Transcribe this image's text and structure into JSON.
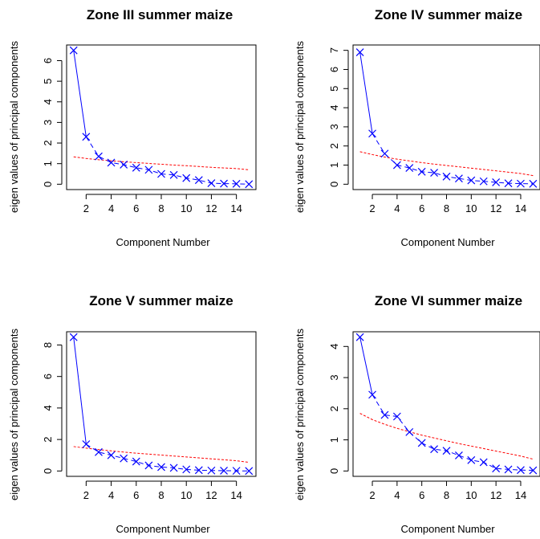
{
  "chart_data": [
    {
      "type": "line",
      "title": "Zone III summer maize",
      "xlabel": "Component Number",
      "ylabel": "eigen values of principal components",
      "xlim": [
        1,
        15
      ],
      "ylim": [
        0,
        6.5
      ],
      "xticks": [
        2,
        4,
        6,
        8,
        10,
        12,
        14
      ],
      "yticks": [
        0,
        1,
        2,
        3,
        4,
        5,
        6
      ],
      "grid": false,
      "series": [
        {
          "kind": "scatter-x",
          "color": "#0000ff",
          "x": [
            1,
            2,
            3,
            4,
            5,
            6,
            7,
            8,
            9,
            10,
            11,
            12,
            13,
            14,
            15
          ],
          "y": [
            6.5,
            2.3,
            1.35,
            1.05,
            0.95,
            0.8,
            0.7,
            0.5,
            0.45,
            0.3,
            0.2,
            0.05,
            0.03,
            0.02,
            0.0
          ]
        },
        {
          "kind": "dashed-line",
          "color": "#ff0000",
          "x": [
            1,
            2,
            3,
            4,
            5,
            6,
            7,
            8,
            9,
            10,
            11,
            12,
            13,
            14,
            15
          ],
          "y": [
            1.33,
            1.25,
            1.19,
            1.14,
            1.09,
            1.05,
            1.01,
            0.97,
            0.93,
            0.9,
            0.86,
            0.82,
            0.79,
            0.76,
            0.7
          ]
        }
      ]
    },
    {
      "type": "line",
      "title": "Zone IV summer maize",
      "xlabel": "Component Number",
      "ylabel": "eigen values of principal components",
      "xlim": [
        1,
        15
      ],
      "ylim": [
        0,
        7
      ],
      "xticks": [
        2,
        4,
        6,
        8,
        10,
        12,
        14
      ],
      "yticks": [
        0,
        1,
        2,
        3,
        4,
        5,
        6,
        7
      ],
      "grid": false,
      "series": [
        {
          "kind": "scatter-x",
          "color": "#0000ff",
          "x": [
            1,
            2,
            3,
            4,
            5,
            6,
            7,
            8,
            9,
            10,
            11,
            12,
            13,
            14,
            15
          ],
          "y": [
            6.9,
            2.65,
            1.6,
            1.0,
            0.85,
            0.65,
            0.6,
            0.4,
            0.3,
            0.2,
            0.15,
            0.1,
            0.05,
            0.03,
            0.02
          ]
        },
        {
          "kind": "dashed-line",
          "color": "#ff0000",
          "x": [
            1,
            2,
            3,
            4,
            5,
            6,
            7,
            8,
            9,
            10,
            11,
            12,
            13,
            14,
            15
          ],
          "y": [
            1.7,
            1.55,
            1.42,
            1.31,
            1.22,
            1.13,
            1.05,
            0.98,
            0.91,
            0.84,
            0.77,
            0.7,
            0.63,
            0.56,
            0.45
          ]
        }
      ]
    },
    {
      "type": "line",
      "title": "Zone V summer maize",
      "xlabel": "Component Number",
      "ylabel": "eigen values of principal components",
      "xlim": [
        1,
        15
      ],
      "ylim": [
        0,
        8.5
      ],
      "xticks": [
        2,
        4,
        6,
        8,
        10,
        12,
        14
      ],
      "yticks": [
        0,
        2,
        4,
        6,
        8
      ],
      "grid": false,
      "series": [
        {
          "kind": "scatter-x",
          "color": "#0000ff",
          "x": [
            1,
            2,
            3,
            4,
            5,
            6,
            7,
            8,
            9,
            10,
            11,
            12,
            13,
            14,
            15
          ],
          "y": [
            8.5,
            1.7,
            1.2,
            1.0,
            0.8,
            0.6,
            0.35,
            0.25,
            0.2,
            0.1,
            0.05,
            0.03,
            0.02,
            0.01,
            0.0
          ]
        },
        {
          "kind": "dashed-line",
          "color": "#ff0000",
          "x": [
            1,
            2,
            3,
            4,
            5,
            6,
            7,
            8,
            9,
            10,
            11,
            12,
            13,
            14,
            15
          ],
          "y": [
            1.55,
            1.45,
            1.36,
            1.28,
            1.2,
            1.13,
            1.07,
            1.01,
            0.95,
            0.89,
            0.83,
            0.77,
            0.71,
            0.65,
            0.55
          ]
        }
      ]
    },
    {
      "type": "line",
      "title": "Zone VI summer maize",
      "xlabel": "Component Number",
      "ylabel": "eigen values of principal components",
      "xlim": [
        1,
        15
      ],
      "ylim": [
        0,
        4.3
      ],
      "xticks": [
        2,
        4,
        6,
        8,
        10,
        12,
        14
      ],
      "yticks": [
        0,
        1,
        2,
        3,
        4
      ],
      "grid": false,
      "series": [
        {
          "kind": "scatter-x",
          "color": "#0000ff",
          "x": [
            1,
            2,
            3,
            4,
            5,
            6,
            7,
            8,
            9,
            10,
            11,
            12,
            13,
            14,
            15
          ],
          "y": [
            4.3,
            2.45,
            1.8,
            1.75,
            1.25,
            0.9,
            0.7,
            0.65,
            0.5,
            0.35,
            0.28,
            0.08,
            0.05,
            0.03,
            0.02
          ]
        },
        {
          "kind": "dashed-line",
          "color": "#ff0000",
          "x": [
            1,
            2,
            3,
            4,
            5,
            6,
            7,
            8,
            9,
            10,
            11,
            12,
            13,
            14,
            15
          ],
          "y": [
            1.85,
            1.65,
            1.5,
            1.37,
            1.26,
            1.15,
            1.06,
            0.97,
            0.88,
            0.8,
            0.72,
            0.64,
            0.56,
            0.48,
            0.38
          ]
        }
      ]
    }
  ]
}
